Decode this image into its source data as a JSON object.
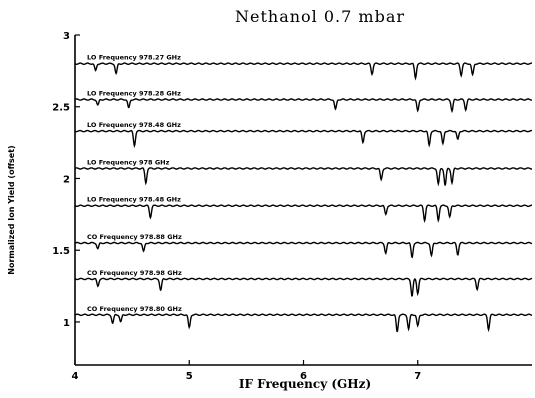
{
  "chart_data": {
    "type": "line",
    "title": "Nethanol 0.7 mbar",
    "xlabel": "IF Frequency (GHz)",
    "ylabel": "Normalized Ion Yield (offset)",
    "xlim": [
      4,
      8
    ],
    "ylim": [
      0.7,
      3
    ],
    "x_ticks": [
      "4",
      "5",
      "6",
      "7"
    ],
    "x_tick_values": [
      4,
      5,
      6,
      7
    ],
    "y_ticks": [
      "1",
      "1.5",
      "2",
      "2.5",
      "3"
    ],
    "y_tick_values": [
      1,
      1.5,
      2,
      2.5,
      3
    ],
    "grid": false,
    "line_color": "#000000",
    "series": [
      {
        "name": "LO Frequency 978.27 GHz",
        "baseline": 2.8,
        "dips": [
          {
            "x": 4.18,
            "depth": 0.05
          },
          {
            "x": 4.36,
            "depth": 0.07
          },
          {
            "x": 6.6,
            "depth": 0.07
          },
          {
            "x": 6.98,
            "depth": 0.1
          },
          {
            "x": 7.38,
            "depth": 0.08
          },
          {
            "x": 7.48,
            "depth": 0.08
          }
        ]
      },
      {
        "name": "LO Frequency 978.28 GHz",
        "baseline": 2.55,
        "dips": [
          {
            "x": 4.2,
            "depth": 0.04
          },
          {
            "x": 4.47,
            "depth": 0.06
          },
          {
            "x": 6.28,
            "depth": 0.07
          },
          {
            "x": 7.0,
            "depth": 0.08
          },
          {
            "x": 7.3,
            "depth": 0.08
          },
          {
            "x": 7.42,
            "depth": 0.07
          }
        ]
      },
      {
        "name": "LO Frequency 978.48 GHz",
        "baseline": 2.33,
        "dips": [
          {
            "x": 4.52,
            "depth": 0.1
          },
          {
            "x": 6.52,
            "depth": 0.08
          },
          {
            "x": 7.1,
            "depth": 0.1
          },
          {
            "x": 7.22,
            "depth": 0.09
          },
          {
            "x": 7.35,
            "depth": 0.06
          }
        ]
      },
      {
        "name": "LO Frequency 978 GHz",
        "baseline": 2.07,
        "dips": [
          {
            "x": 4.62,
            "depth": 0.1
          },
          {
            "x": 6.68,
            "depth": 0.08
          },
          {
            "x": 7.18,
            "depth": 0.11
          },
          {
            "x": 7.24,
            "depth": 0.12
          },
          {
            "x": 7.3,
            "depth": 0.1
          }
        ]
      },
      {
        "name": "LO Frequency 978.48 GHz",
        "baseline": 1.81,
        "dips": [
          {
            "x": 4.66,
            "depth": 0.08
          },
          {
            "x": 6.72,
            "depth": 0.06
          },
          {
            "x": 7.06,
            "depth": 0.1
          },
          {
            "x": 7.18,
            "depth": 0.1
          },
          {
            "x": 7.28,
            "depth": 0.08
          }
        ]
      },
      {
        "name": "CO Frequency 978.88 GHz",
        "baseline": 1.55,
        "dips": [
          {
            "x": 4.2,
            "depth": 0.04
          },
          {
            "x": 4.6,
            "depth": 0.06
          },
          {
            "x": 6.72,
            "depth": 0.07
          },
          {
            "x": 6.95,
            "depth": 0.1
          },
          {
            "x": 7.12,
            "depth": 0.09
          },
          {
            "x": 7.35,
            "depth": 0.08
          }
        ]
      },
      {
        "name": "CO Frequency 978.98 GHz",
        "baseline": 1.3,
        "dips": [
          {
            "x": 4.2,
            "depth": 0.05
          },
          {
            "x": 4.75,
            "depth": 0.08
          },
          {
            "x": 6.95,
            "depth": 0.12
          },
          {
            "x": 7.0,
            "depth": 0.1
          },
          {
            "x": 7.52,
            "depth": 0.07
          }
        ]
      },
      {
        "name": "CO Frequency 978.80 GHz",
        "baseline": 1.05,
        "dips": [
          {
            "x": 4.33,
            "depth": 0.06
          },
          {
            "x": 4.4,
            "depth": 0.05
          },
          {
            "x": 5.0,
            "depth": 0.09
          },
          {
            "x": 6.82,
            "depth": 0.12
          },
          {
            "x": 6.92,
            "depth": 0.1
          },
          {
            "x": 7.0,
            "depth": 0.08
          },
          {
            "x": 7.62,
            "depth": 0.1
          }
        ]
      }
    ]
  }
}
